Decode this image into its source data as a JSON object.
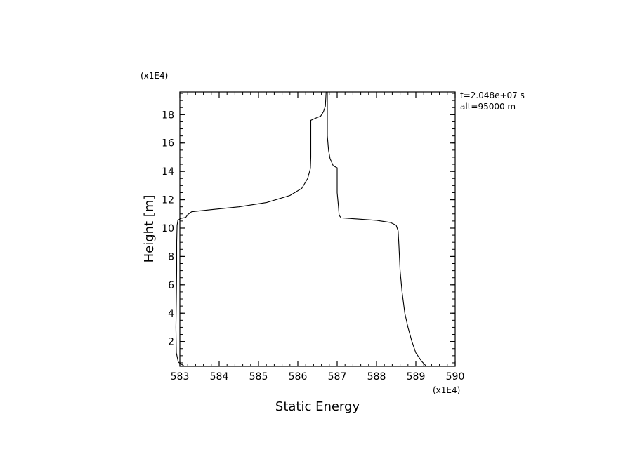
{
  "chart_data": {
    "type": "line",
    "title": "",
    "xlabel": "Static Energy",
    "ylabel": "Height [m]",
    "x_multiplier_label": "(x1E4)",
    "y_multiplier_label": "(x1E4)",
    "xlim": [
      583,
      590
    ],
    "ylim": [
      0.25,
      19.6
    ],
    "x_ticks": [
      "583",
      "584",
      "585",
      "586",
      "587",
      "588",
      "589",
      "590"
    ],
    "y_ticks": [
      "2",
      "4",
      "6",
      "8",
      "10",
      "12",
      "14",
      "16",
      "18"
    ],
    "annotations": [
      "t=2.048e+07 s",
      "alt=95000 m"
    ],
    "grid": false,
    "series": [
      {
        "name": "",
        "color": "#000000",
        "points": [
          [
            589.27,
            0.25
          ],
          [
            589.15,
            0.6
          ],
          [
            589.0,
            1.2
          ],
          [
            588.9,
            2.0
          ],
          [
            588.8,
            3.0
          ],
          [
            588.72,
            4.0
          ],
          [
            588.65,
            5.5
          ],
          [
            588.6,
            7.0
          ],
          [
            588.57,
            8.8
          ],
          [
            588.55,
            9.8
          ],
          [
            588.5,
            10.2
          ],
          [
            588.35,
            10.4
          ],
          [
            588.0,
            10.55
          ],
          [
            587.5,
            10.65
          ],
          [
            587.1,
            10.72
          ],
          [
            587.05,
            10.9
          ],
          [
            587.03,
            11.6
          ],
          [
            587.0,
            12.5
          ],
          [
            587.0,
            14.25
          ],
          [
            586.9,
            14.4
          ],
          [
            586.82,
            14.9
          ],
          [
            586.78,
            15.5
          ],
          [
            586.75,
            16.5
          ],
          [
            586.75,
            19.6
          ]
        ]
      },
      {
        "name": "",
        "color": "#000000",
        "points": [
          [
            583.12,
            0.25
          ],
          [
            582.96,
            0.55
          ],
          [
            582.91,
            1.2
          ],
          [
            582.9,
            3.0
          ],
          [
            582.91,
            5.0
          ],
          [
            582.92,
            7.0
          ],
          [
            582.92,
            9.0
          ],
          [
            582.93,
            10.2
          ],
          [
            582.95,
            10.55
          ],
          [
            583.02,
            10.68
          ],
          [
            583.15,
            10.75
          ],
          [
            583.2,
            10.95
          ],
          [
            583.3,
            11.15
          ],
          [
            583.8,
            11.3
          ],
          [
            584.5,
            11.5
          ],
          [
            585.2,
            11.8
          ],
          [
            585.8,
            12.3
          ],
          [
            586.1,
            12.8
          ],
          [
            586.25,
            13.5
          ],
          [
            586.32,
            14.2
          ],
          [
            586.33,
            15.0
          ],
          [
            586.33,
            17.6
          ],
          [
            586.45,
            17.75
          ],
          [
            586.58,
            17.9
          ],
          [
            586.65,
            18.2
          ],
          [
            586.7,
            18.6
          ],
          [
            586.72,
            19.6
          ]
        ]
      }
    ]
  }
}
